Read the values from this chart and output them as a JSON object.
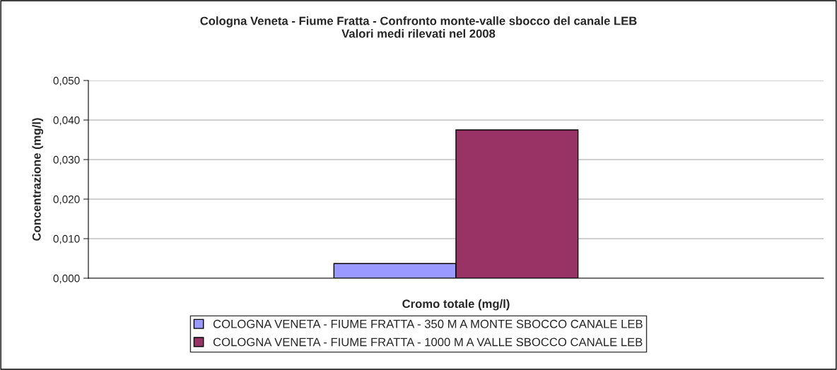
{
  "chart_data": {
    "type": "bar",
    "title": "Cologna Veneta - Fiume Fratta - Confronto monte-valle sbocco del canale LEB\nValori medi rilevati nel 2008",
    "xlabel": "Cromo totale (mg/l)",
    "ylabel": "Concentrazione (mg/l)",
    "categories": [
      null
    ],
    "series": [
      {
        "name": "COLOGNA VENETA - FIUME FRATTA - 350 M A MONTE SBOCCO CANALE LEB",
        "color": "#9999ff",
        "values": [
          0.0037
        ]
      },
      {
        "name": "COLOGNA VENETA - FIUME FRATTA - 1000 M A VALLE SBOCCO CANALE LEB",
        "color": "#993366",
        "values": [
          0.0375
        ]
      }
    ],
    "ylim": [
      0,
      0.05
    ],
    "yticks": [
      {
        "value": 0,
        "label": "0,000"
      },
      {
        "value": 0.01,
        "label": "0,010"
      },
      {
        "value": 0.02,
        "label": "0,020"
      },
      {
        "value": 0.03,
        "label": "0,030"
      },
      {
        "value": 0.04,
        "label": "0,040"
      },
      {
        "value": 0.05,
        "label": "0,050"
      }
    ],
    "grid": "y",
    "legend": "bottom"
  }
}
